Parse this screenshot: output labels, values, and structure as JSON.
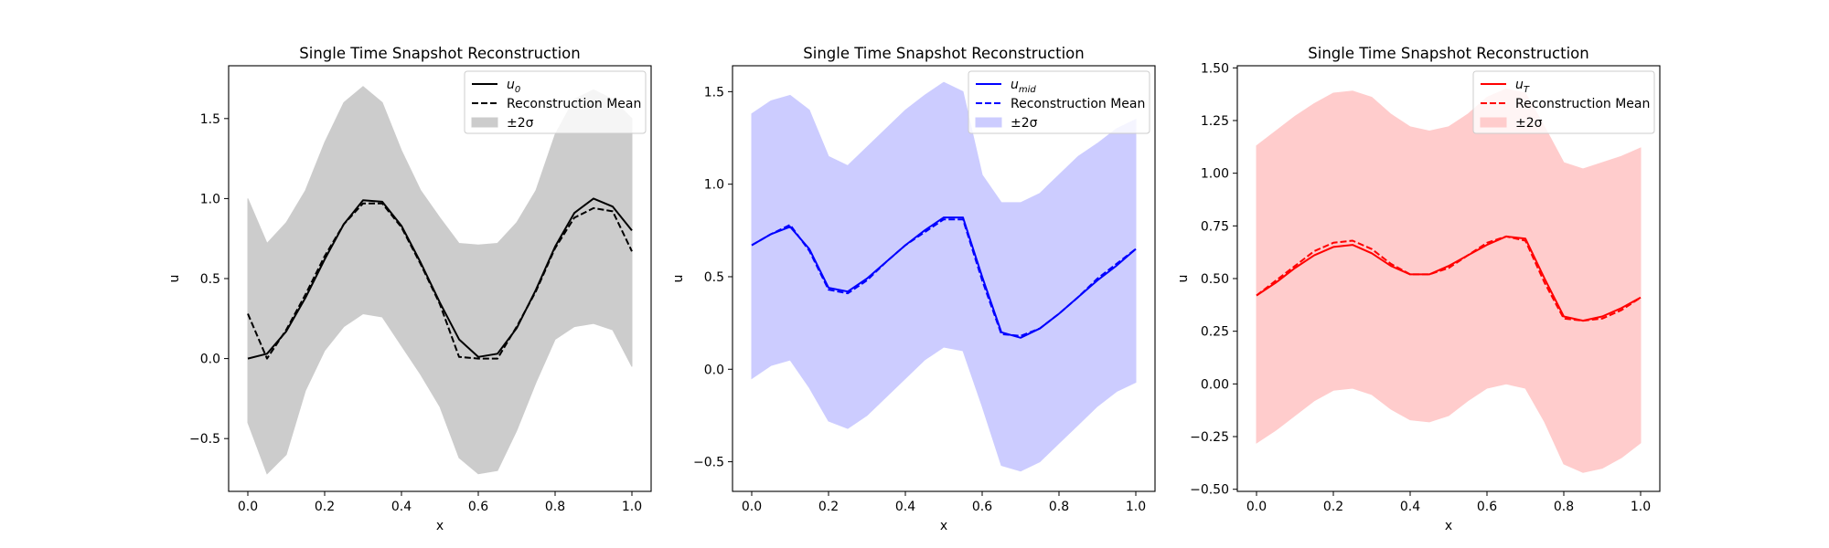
{
  "chart_data": [
    {
      "type": "line",
      "title": "Single Time Snapshot Reconstruction",
      "xlabel": "x",
      "ylabel": "u",
      "xlim": [
        -0.05,
        1.05
      ],
      "ylim": [
        -0.83,
        1.83
      ],
      "xticks": [
        0.0,
        0.2,
        0.4,
        0.6,
        0.8,
        1.0
      ],
      "xtick_labels": [
        "0.0",
        "0.2",
        "0.4",
        "0.6",
        "0.8",
        "1.0"
      ],
      "yticks": [
        -0.5,
        0.0,
        0.5,
        1.0,
        1.5
      ],
      "ytick_labels": [
        "−0.5",
        "0.0",
        "0.5",
        "1.0",
        "1.5"
      ],
      "color": "#000000",
      "band_color": "#cccccc",
      "legend_position": "upper right",
      "legend": [
        {
          "kind": "solid",
          "text_main": "u",
          "text_sub": "0"
        },
        {
          "kind": "dashed",
          "text": "Reconstruction Mean"
        },
        {
          "kind": "band",
          "text": "±2σ"
        }
      ],
      "x": [
        0.0,
        0.05,
        0.1,
        0.15,
        0.2,
        0.25,
        0.3,
        0.35,
        0.4,
        0.45,
        0.5,
        0.55,
        0.6,
        0.65,
        0.7,
        0.75,
        0.8,
        0.85,
        0.9,
        0.95,
        1.0
      ],
      "series": [
        {
          "name": "u_0",
          "style": "solid",
          "values": [
            0.0,
            0.03,
            0.17,
            0.38,
            0.62,
            0.84,
            0.99,
            0.98,
            0.83,
            0.6,
            0.35,
            0.12,
            0.01,
            0.03,
            0.19,
            0.43,
            0.7,
            0.91,
            1.0,
            0.95,
            0.8
          ]
        },
        {
          "name": "Reconstruction Mean",
          "style": "dashed",
          "values": [
            0.28,
            0.0,
            0.18,
            0.4,
            0.64,
            0.84,
            0.97,
            0.97,
            0.82,
            0.59,
            0.34,
            0.01,
            0.0,
            0.0,
            0.2,
            0.42,
            0.69,
            0.88,
            0.94,
            0.92,
            0.67
          ]
        }
      ],
      "band": {
        "upper": [
          1.0,
          0.72,
          0.85,
          1.05,
          1.35,
          1.6,
          1.7,
          1.6,
          1.3,
          1.05,
          0.88,
          0.72,
          0.71,
          0.72,
          0.85,
          1.05,
          1.4,
          1.62,
          1.68,
          1.62,
          1.5
        ],
        "lower": [
          -0.4,
          -0.72,
          -0.6,
          -0.2,
          0.05,
          0.2,
          0.28,
          0.26,
          0.08,
          -0.1,
          -0.3,
          -0.62,
          -0.72,
          -0.7,
          -0.45,
          -0.15,
          0.12,
          0.2,
          0.22,
          0.18,
          -0.05
        ]
      }
    },
    {
      "type": "line",
      "title": "Single Time Snapshot Reconstruction",
      "xlabel": "x",
      "ylabel": "u",
      "xlim": [
        -0.05,
        1.05
      ],
      "ylim": [
        -0.66,
        1.64
      ],
      "xticks": [
        0.0,
        0.2,
        0.4,
        0.6,
        0.8,
        1.0
      ],
      "xtick_labels": [
        "0.0",
        "0.2",
        "0.4",
        "0.6",
        "0.8",
        "1.0"
      ],
      "yticks": [
        -0.5,
        0.0,
        0.5,
        1.0,
        1.5
      ],
      "ytick_labels": [
        "−0.5",
        "0.0",
        "0.5",
        "1.0",
        "1.5"
      ],
      "color": "#0000ff",
      "band_color": "#ccccff",
      "legend_position": "upper right",
      "legend": [
        {
          "kind": "solid",
          "text_main": "u",
          "text_sub": "mid"
        },
        {
          "kind": "dashed",
          "text": "Reconstruction Mean"
        },
        {
          "kind": "band",
          "text": "±2σ"
        }
      ],
      "x": [
        0.0,
        0.05,
        0.1,
        0.15,
        0.2,
        0.25,
        0.3,
        0.35,
        0.4,
        0.45,
        0.5,
        0.55,
        0.6,
        0.65,
        0.7,
        0.75,
        0.8,
        0.85,
        0.9,
        0.95,
        1.0
      ],
      "series": [
        {
          "name": "u_mid",
          "style": "solid",
          "values": [
            0.67,
            0.73,
            0.77,
            0.65,
            0.44,
            0.42,
            0.49,
            0.58,
            0.67,
            0.75,
            0.82,
            0.82,
            0.5,
            0.2,
            0.17,
            0.22,
            0.3,
            0.39,
            0.48,
            0.56,
            0.65
          ]
        },
        {
          "name": "Reconstruction Mean",
          "style": "dashed",
          "values": [
            0.67,
            0.73,
            0.78,
            0.64,
            0.43,
            0.41,
            0.48,
            0.58,
            0.67,
            0.74,
            0.81,
            0.81,
            0.48,
            0.19,
            0.18,
            0.22,
            0.3,
            0.39,
            0.49,
            0.57,
            0.65
          ]
        }
      ],
      "band": {
        "upper": [
          1.38,
          1.45,
          1.48,
          1.4,
          1.15,
          1.1,
          1.2,
          1.3,
          1.4,
          1.48,
          1.55,
          1.5,
          1.05,
          0.9,
          0.9,
          0.95,
          1.05,
          1.15,
          1.22,
          1.3,
          1.35
        ],
        "lower": [
          -0.05,
          0.02,
          0.05,
          -0.1,
          -0.28,
          -0.32,
          -0.25,
          -0.15,
          -0.05,
          0.05,
          0.12,
          0.1,
          -0.2,
          -0.52,
          -0.55,
          -0.5,
          -0.4,
          -0.3,
          -0.2,
          -0.12,
          -0.07
        ]
      }
    },
    {
      "type": "line",
      "title": "Single Time Snapshot Reconstruction",
      "xlabel": "x",
      "ylabel": "u",
      "xlim": [
        -0.05,
        1.05
      ],
      "ylim": [
        -0.51,
        1.51
      ],
      "xticks": [
        0.0,
        0.2,
        0.4,
        0.6,
        0.8,
        1.0
      ],
      "xtick_labels": [
        "0.0",
        "0.2",
        "0.4",
        "0.6",
        "0.8",
        "1.0"
      ],
      "yticks": [
        -0.5,
        -0.25,
        0.0,
        0.25,
        0.5,
        0.75,
        1.0,
        1.25,
        1.5
      ],
      "ytick_labels": [
        "−0.50",
        "−0.25",
        "0.00",
        "0.25",
        "0.50",
        "0.75",
        "1.00",
        "1.25",
        "1.50"
      ],
      "color": "#ff0000",
      "band_color": "#ffcccc",
      "legend_position": "upper right",
      "legend": [
        {
          "kind": "solid",
          "text_main": "u",
          "text_sub": "T"
        },
        {
          "kind": "dashed",
          "text": "Reconstruction Mean"
        },
        {
          "kind": "band",
          "text": "±2σ"
        }
      ],
      "x": [
        0.0,
        0.05,
        0.1,
        0.15,
        0.2,
        0.25,
        0.3,
        0.35,
        0.4,
        0.45,
        0.5,
        0.55,
        0.6,
        0.65,
        0.7,
        0.75,
        0.8,
        0.85,
        0.9,
        0.95,
        1.0
      ],
      "series": [
        {
          "name": "u_T",
          "style": "solid",
          "values": [
            0.42,
            0.48,
            0.55,
            0.61,
            0.65,
            0.66,
            0.62,
            0.56,
            0.52,
            0.52,
            0.56,
            0.61,
            0.66,
            0.7,
            0.69,
            0.5,
            0.32,
            0.3,
            0.32,
            0.36,
            0.41
          ]
        },
        {
          "name": "Reconstruction Mean",
          "style": "dashed",
          "values": [
            0.42,
            0.49,
            0.56,
            0.63,
            0.67,
            0.68,
            0.64,
            0.57,
            0.52,
            0.52,
            0.55,
            0.61,
            0.67,
            0.7,
            0.68,
            0.48,
            0.31,
            0.3,
            0.31,
            0.35,
            0.41
          ]
        }
      ],
      "band": {
        "upper": [
          1.13,
          1.2,
          1.27,
          1.33,
          1.38,
          1.39,
          1.36,
          1.28,
          1.22,
          1.2,
          1.22,
          1.28,
          1.36,
          1.4,
          1.38,
          1.22,
          1.05,
          1.02,
          1.05,
          1.08,
          1.12
        ],
        "lower": [
          -0.28,
          -0.22,
          -0.15,
          -0.08,
          -0.03,
          -0.02,
          -0.05,
          -0.12,
          -0.17,
          -0.18,
          -0.15,
          -0.08,
          -0.02,
          0.0,
          -0.02,
          -0.18,
          -0.38,
          -0.42,
          -0.4,
          -0.35,
          -0.28
        ]
      }
    }
  ]
}
